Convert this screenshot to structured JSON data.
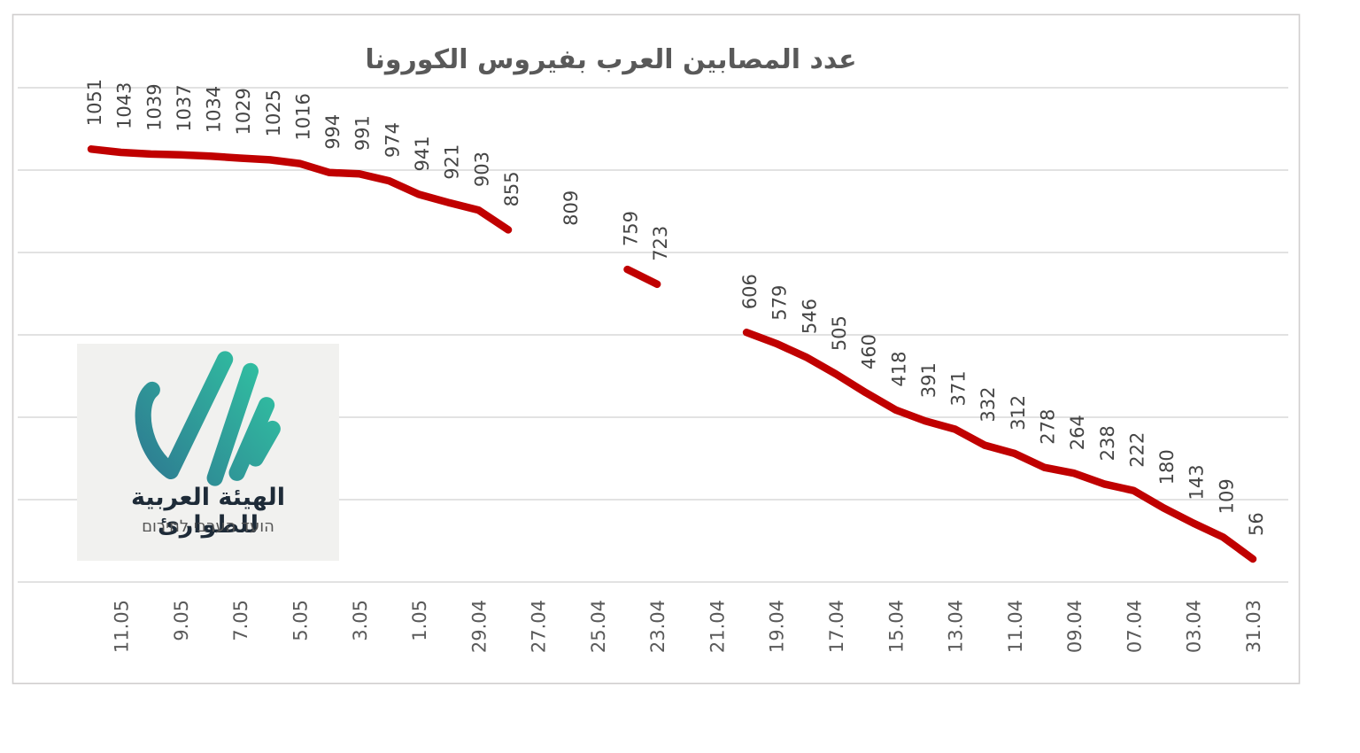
{
  "window": {
    "background": "#FFFFFF"
  },
  "chart": {
    "title": "عدد المصابين العرب بفيروس الكورونا",
    "frame_border_color": "#D0CECE"
  },
  "logo": {
    "icon": "checkmark-waves-icon",
    "arabic_title": "الهيئة العربية للطوارئ",
    "hebrew_subtitle": "הועד הערבי לחירום",
    "background": "#F1F1EF",
    "gradient_start": "#2E7A91",
    "gradient_end": "#31C3A2",
    "arabic_color": "#1E2B38",
    "hebrew_color": "#555555"
  },
  "chart_data": {
    "type": "line",
    "title": "عدد المصابين العرب بفيروس الكورونا",
    "direction": "time-increases-right-to-left",
    "legend": "none",
    "grid": true,
    "ylim": [
      0,
      1200
    ],
    "y_major": 200,
    "y_axis_labels_visible": false,
    "data_labels_visible": true,
    "data_label_rotation": -90,
    "x_tick_rotation": -90,
    "gridline_color": "#D9D9D9",
    "data_label_color": "#454545",
    "axis_label_color": "#595959",
    "series": [
      {
        "name": "infected",
        "color": "#C00000",
        "values": [
          1051,
          1043,
          1039,
          1037,
          1034,
          1029,
          1025,
          1016,
          994,
          991,
          974,
          941,
          921,
          903,
          855,
          null,
          809,
          null,
          759,
          723,
          null,
          null,
          606,
          579,
          546,
          505,
          460,
          418,
          391,
          371,
          332,
          312,
          278,
          264,
          238,
          222,
          180,
          143,
          109,
          56
        ]
      }
    ],
    "x_tick_labels": [
      "11.05",
      "9.05",
      "7.05",
      "5.05",
      "3.05",
      "1.05",
      "29.04",
      "27.04",
      "25.04",
      "23.04",
      "21.04",
      "19.04",
      "17.04",
      "15.04",
      "13.04",
      "11.04",
      "09.04",
      "07.04",
      "03.04",
      "31.03"
    ],
    "x_tick_category_indices": [
      1,
      3,
      5,
      7,
      9,
      11,
      13,
      15,
      17,
      19,
      21,
      23,
      25,
      27,
      29,
      31,
      33,
      35,
      37,
      39
    ]
  }
}
